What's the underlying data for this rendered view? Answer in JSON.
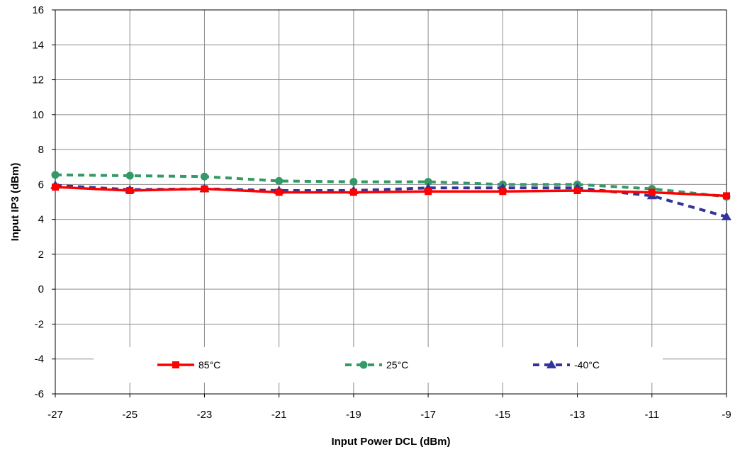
{
  "chart_data": {
    "type": "line",
    "title": "",
    "xlabel": "Input Power DCL (dBm)",
    "ylabel": "Input IP3  (dBm)",
    "xlim": [
      -27,
      -9
    ],
    "ylim": [
      -6,
      16
    ],
    "xticks": [
      "-27",
      "-25",
      "-23",
      "-21",
      "-19",
      "-17",
      "-15",
      "-13",
      "-11",
      "-9"
    ],
    "yticks": [
      "16",
      "14",
      "12",
      "10",
      "8",
      "6",
      "4",
      "2",
      "0",
      "-2",
      "-4",
      "-6"
    ],
    "grid": true,
    "legend_position": "bottom-inside",
    "x": [
      -27,
      -25,
      -23,
      -21,
      -19,
      -17,
      -15,
      -13,
      -11,
      -9
    ],
    "series": [
      {
        "name": "85°C",
        "color": "#ff0000",
        "marker": "square",
        "dash": "solid",
        "values": [
          5.85,
          5.65,
          5.75,
          5.55,
          5.55,
          5.6,
          5.6,
          5.65,
          5.55,
          5.35
        ]
      },
      {
        "name": "25°C",
        "color": "#339966",
        "marker": "circle",
        "dash": "dashed",
        "values": [
          6.55,
          6.5,
          6.45,
          6.2,
          6.15,
          6.15,
          6.0,
          6.0,
          5.75,
          5.3
        ]
      },
      {
        "name": "-40°C",
        "color": "#333399",
        "marker": "triangle",
        "dash": "dashed",
        "values": [
          5.95,
          5.7,
          5.75,
          5.65,
          5.65,
          5.8,
          5.8,
          5.8,
          5.35,
          4.15
        ]
      }
    ]
  }
}
